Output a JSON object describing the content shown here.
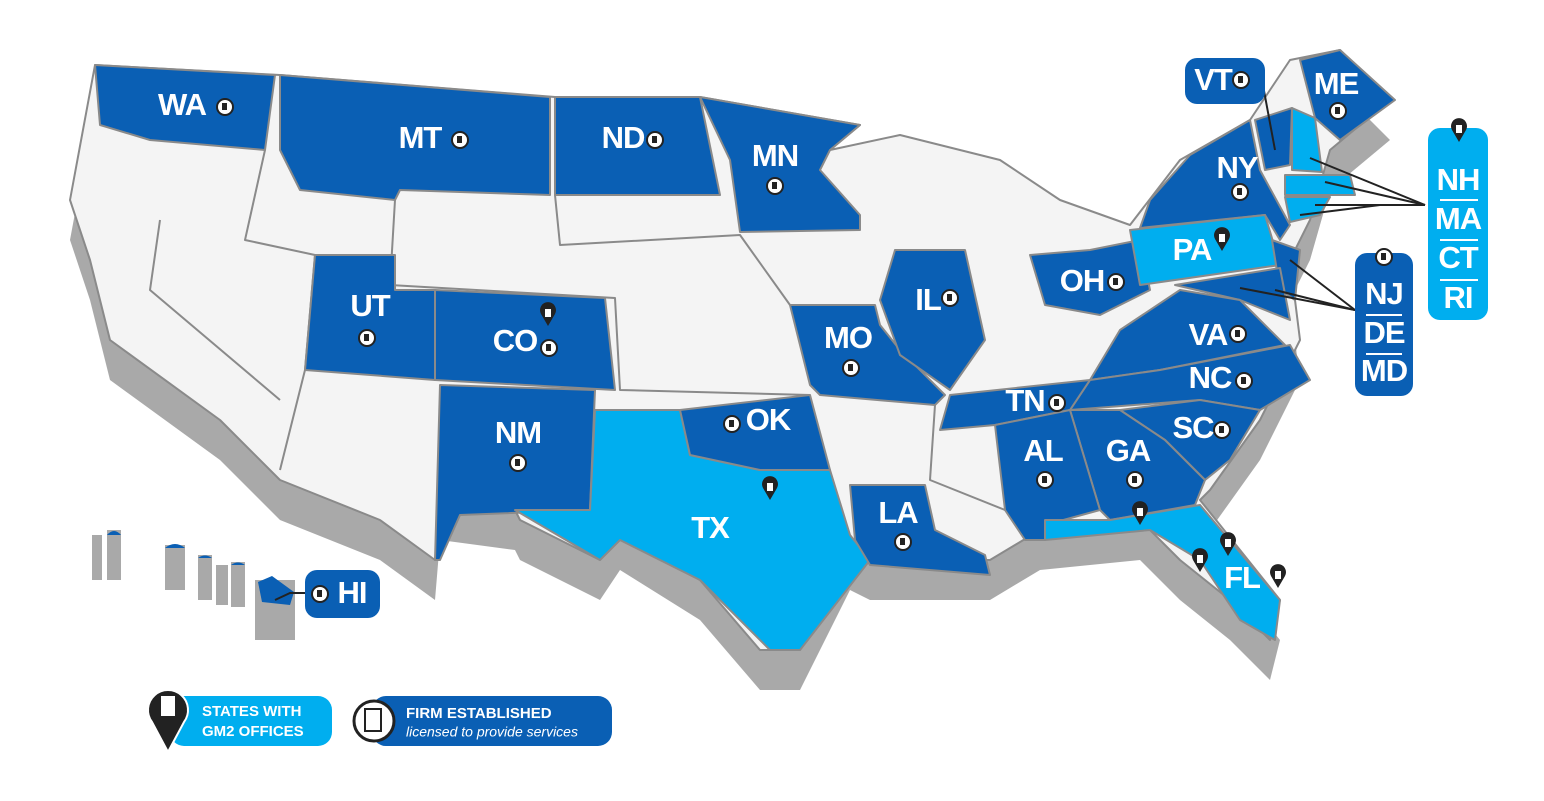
{
  "states": [
    "WA",
    "MT",
    "ND",
    "MN",
    "UT",
    "CO",
    "NM",
    "TX",
    "OK",
    "MO",
    "IL",
    "LA",
    "OH",
    "PA",
    "NY",
    "VT",
    "ME",
    "TN",
    "VA",
    "NC",
    "SC",
    "GA",
    "AL",
    "FL",
    "HI"
  ],
  "callouts": {
    "northeast": [
      "NH",
      "MA",
      "CT",
      "RI"
    ],
    "mid_atlantic": [
      "NJ",
      "DE",
      "MD"
    ]
  },
  "legend": {
    "offices": [
      "STATES WITH",
      "GM2 OFFICES"
    ],
    "licensed": {
      "title": "FIRM ESTABLISHED",
      "subtitle": "licensed to provide services"
    }
  }
}
